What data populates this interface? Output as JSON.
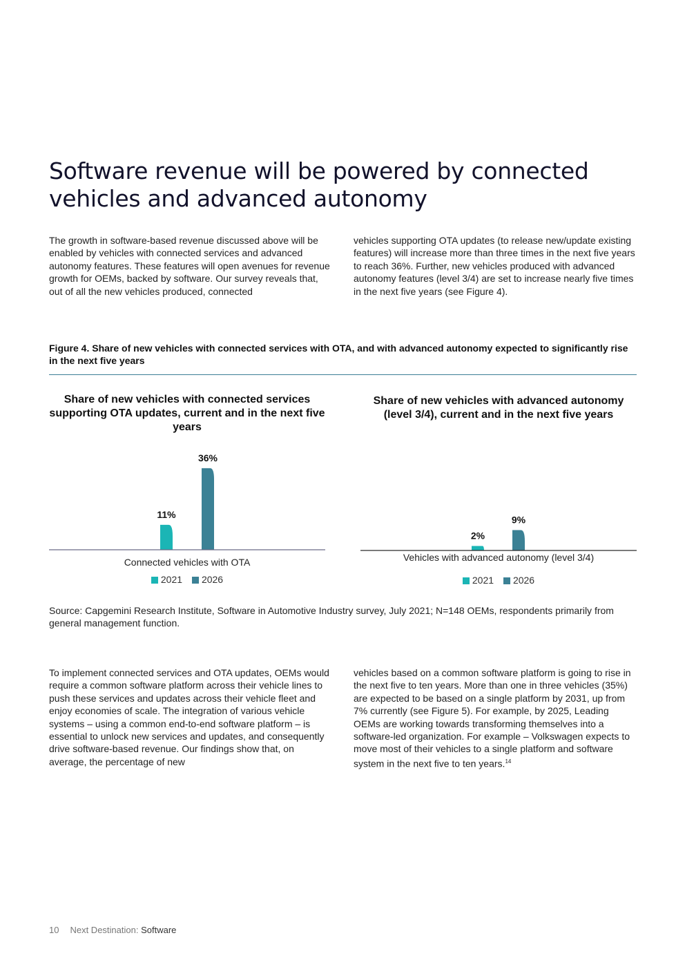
{
  "heading": "Software revenue will be powered by connected vehicles and advanced autonomy",
  "intro_left": "The growth in software-based revenue discussed above will be enabled by vehicles with connected services and advanced autonomy features. These features will open avenues for revenue growth for OEMs, backed by software. Our survey reveals that, out of all the new vehicles produced, connected",
  "intro_right": "vehicles supporting OTA updates (to release new/update existing features) will increase more than three times in the next five years to reach 36%. Further, new vehicles produced with advanced autonomy features (level 3/4) are set to increase nearly five times in the next five years (see Figure 4).",
  "figure": {
    "title": "Figure 4. Share of new vehicles with connected services with OTA, and with advanced autonomy expected to significantly rise in the next five years"
  },
  "chart_data": [
    {
      "type": "bar",
      "title": "Share of new vehicles with connected services supporting OTA updates, current and in the next five years",
      "categories": [
        "Connected vehicles with OTA"
      ],
      "series": [
        {
          "name": "2021",
          "values": [
            11
          ],
          "labels": [
            "11%"
          ],
          "color": "#1bb5b5"
        },
        {
          "name": "2026",
          "values": [
            36
          ],
          "labels": [
            "36%"
          ],
          "color": "#3b8195"
        }
      ],
      "unit": "%",
      "grid": false,
      "legend": "bottom-center"
    },
    {
      "type": "bar",
      "title": "Share of new vehicles with advanced autonomy (level 3/4), current and in the next five years",
      "categories": [
        "Vehicles with advanced autonomy (level 3/4)"
      ],
      "series": [
        {
          "name": "2021",
          "values": [
            2
          ],
          "labels": [
            "2%"
          ],
          "color": "#1bb5b5"
        },
        {
          "name": "2026",
          "values": [
            9
          ],
          "labels": [
            "9%"
          ],
          "color": "#3b8195"
        }
      ],
      "unit": "%",
      "grid": false,
      "legend": "bottom-center"
    }
  ],
  "source": "Source: Capgemini Research Institute, Software in Automotive Industry survey, July 2021; N=148 OEMs, respondents primarily from general management function.",
  "body_left": "To implement connected services and OTA updates, OEMs would require a common software platform across their vehicle lines to push these services and updates across their vehicle fleet and enjoy economies of scale. The integration of various vehicle systems – using a common end-to-end software platform – is essential to unlock new services and updates, and consequently drive software-based revenue. Our findings show that, on average, the percentage of new",
  "body_right": "vehicles based on a common software platform is going to rise in the next five to ten years. More than one in three vehicles (35%) are expected to be based on a single platform by 2031, up from 7% currently (see Figure 5). For example, by 2025, Leading OEMs are working towards transforming themselves into a software-led organization. For example – Volkswagen expects to move most of their vehicles to a single platform and software system in the next five to ten years.",
  "body_right_footnote": "14",
  "footer": {
    "page_number": "10",
    "publication_prefix": "Next Destination:",
    "publication_topic": "Software"
  }
}
